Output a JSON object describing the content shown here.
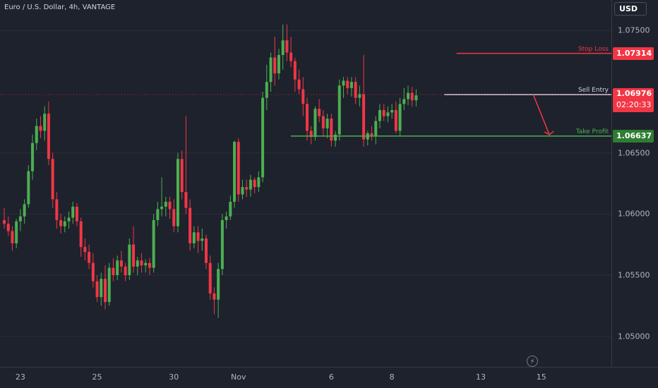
{
  "header": {
    "symbol_title": "Euro / U.S. Dollar, 4h, VANTAGE",
    "currency": "USD"
  },
  "levels": {
    "stop_loss": {
      "label": "Stop Loss",
      "price_text": "1.07314",
      "value": 1.07314,
      "color": "#f23645"
    },
    "sell_entry": {
      "label": "Sell Entry",
      "price_text": "1.06976",
      "value": 1.06976,
      "countdown": "02:20:33",
      "color": "#f23645"
    },
    "take_profit": {
      "label": "Take Profit",
      "price_text": "1.06637",
      "value": 1.06637,
      "color": "#2e7d32"
    }
  },
  "colors": {
    "up": "#4caf50",
    "down": "#f23645",
    "background": "#1e222d",
    "grid": "#2a2e39"
  },
  "chart_data": {
    "type": "candlestick",
    "title": "Euro / U.S. Dollar, 4h, VANTAGE",
    "ylim": [
      1.0475,
      1.0775
    ],
    "y_ticks": [
      "1.05000",
      "1.05500",
      "1.06000",
      "1.06500",
      "1.07500"
    ],
    "y_tick_values": [
      1.05,
      1.055,
      1.06,
      1.065,
      1.075
    ],
    "x_ticks": [
      {
        "label": "23",
        "index": 4
      },
      {
        "label": "25",
        "index": 23
      },
      {
        "label": "30",
        "index": 42
      },
      {
        "label": "Nov",
        "index": 58
      },
      {
        "label": "6",
        "index": 81
      },
      {
        "label": "8",
        "index": 96
      },
      {
        "label": "13",
        "index": 118
      },
      {
        "label": "15",
        "index": 133
      }
    ],
    "candles": [
      [
        1.0595,
        1.0605,
        1.0588,
        1.0592
      ],
      [
        1.0592,
        1.0598,
        1.0582,
        1.0586
      ],
      [
        1.0586,
        1.059,
        1.057,
        1.0576
      ],
      [
        1.0576,
        1.0596,
        1.0572,
        1.0594
      ],
      [
        1.0594,
        1.0604,
        1.0586,
        1.0598
      ],
      [
        1.0598,
        1.0612,
        1.0592,
        1.0608
      ],
      [
        1.0608,
        1.064,
        1.0605,
        1.0635
      ],
      [
        1.0635,
        1.0665,
        1.0628,
        1.0658
      ],
      [
        1.0658,
        1.0678,
        1.0652,
        1.0672
      ],
      [
        1.0672,
        1.068,
        1.0662,
        1.0668
      ],
      [
        1.0668,
        1.0688,
        1.066,
        1.0682
      ],
      [
        1.0682,
        1.0692,
        1.064,
        1.0645
      ],
      [
        1.0645,
        1.065,
        1.0605,
        1.0612
      ],
      [
        1.0612,
        1.0618,
        1.0588,
        1.0595
      ],
      [
        1.0595,
        1.06,
        1.0584,
        1.059
      ],
      [
        1.059,
        1.0598,
        1.0585,
        1.0594
      ],
      [
        1.0594,
        1.0602,
        1.0588,
        1.0597
      ],
      [
        1.0597,
        1.061,
        1.0592,
        1.0606
      ],
      [
        1.0606,
        1.0609,
        1.059,
        1.0594
      ],
      [
        1.0594,
        1.0597,
        1.0565,
        1.0573
      ],
      [
        1.0573,
        1.058,
        1.0562,
        1.0569
      ],
      [
        1.0569,
        1.0575,
        1.0555,
        1.056
      ],
      [
        1.056,
        1.0568,
        1.054,
        1.0545
      ],
      [
        1.0545,
        1.055,
        1.0528,
        1.0532
      ],
      [
        1.0532,
        1.0552,
        1.0525,
        1.0547
      ],
      [
        1.0547,
        1.0558,
        1.0522,
        1.0528
      ],
      [
        1.0528,
        1.056,
        1.0525,
        1.0556
      ],
      [
        1.0556,
        1.0564,
        1.0545,
        1.055
      ],
      [
        1.055,
        1.0566,
        1.0546,
        1.0562
      ],
      [
        1.0562,
        1.057,
        1.0552,
        1.0557
      ],
      [
        1.0557,
        1.056,
        1.0545,
        1.055
      ],
      [
        1.055,
        1.058,
        1.0546,
        1.0575
      ],
      [
        1.0575,
        1.059,
        1.0552,
        1.0557
      ],
      [
        1.0557,
        1.0565,
        1.055,
        1.0562
      ],
      [
        1.0562,
        1.0568,
        1.0552,
        1.0558
      ],
      [
        1.0558,
        1.0563,
        1.0552,
        1.056
      ],
      [
        1.056,
        1.0564,
        1.055,
        1.0556
      ],
      [
        1.0556,
        1.06,
        1.0552,
        1.0595
      ],
      [
        1.0595,
        1.061,
        1.059,
        1.0604
      ],
      [
        1.0604,
        1.063,
        1.0598,
        1.0606
      ],
      [
        1.0606,
        1.0614,
        1.0598,
        1.061
      ],
      [
        1.061,
        1.0614,
        1.0596,
        1.0604
      ],
      [
        1.0604,
        1.0612,
        1.0585,
        1.059
      ],
      [
        1.059,
        1.065,
        1.0585,
        1.0645
      ],
      [
        1.0645,
        1.0652,
        1.0612,
        1.0618
      ],
      [
        1.0618,
        1.068,
        1.06,
        1.0605
      ],
      [
        1.0605,
        1.0612,
        1.057,
        1.0576
      ],
      [
        1.0576,
        1.059,
        1.0572,
        1.0585
      ],
      [
        1.0585,
        1.059,
        1.0568,
        1.0578
      ],
      [
        1.0578,
        1.0588,
        1.057,
        1.058
      ],
      [
        1.058,
        1.0583,
        1.0555,
        1.056
      ],
      [
        1.056,
        1.0566,
        1.053,
        1.0535
      ],
      [
        1.0535,
        1.054,
        1.0518,
        1.053
      ],
      [
        1.053,
        1.056,
        1.0515,
        1.0555
      ],
      [
        1.0555,
        1.06,
        1.055,
        1.0595
      ],
      [
        1.0595,
        1.0602,
        1.0588,
        1.0598
      ],
      [
        1.0598,
        1.0615,
        1.0595,
        1.061
      ],
      [
        1.061,
        1.066,
        1.0605,
        1.0659
      ],
      [
        1.0659,
        1.0662,
        1.061,
        1.0616
      ],
      [
        1.0616,
        1.0628,
        1.0612,
        1.0622
      ],
      [
        1.0622,
        1.0628,
        1.0614,
        1.062
      ],
      [
        1.062,
        1.0632,
        1.0614,
        1.0628
      ],
      [
        1.0628,
        1.063,
        1.0617,
        1.0622
      ],
      [
        1.0622,
        1.0635,
        1.0618,
        1.063
      ],
      [
        1.063,
        1.07,
        1.0626,
        1.0695
      ],
      [
        1.0695,
        1.0722,
        1.0685,
        1.0708
      ],
      [
        1.0708,
        1.0732,
        1.07,
        1.0728
      ],
      [
        1.0728,
        1.0745,
        1.0705,
        1.0715
      ],
      [
        1.0715,
        1.0735,
        1.071,
        1.073
      ],
      [
        1.073,
        1.0755,
        1.0718,
        1.0742
      ],
      [
        1.0742,
        1.0755,
        1.0725,
        1.0732
      ],
      [
        1.0732,
        1.0745,
        1.072,
        1.0725
      ],
      [
        1.0725,
        1.0728,
        1.07,
        1.071
      ],
      [
        1.071,
        1.0718,
        1.0698,
        1.0702
      ],
      [
        1.0702,
        1.0712,
        1.068,
        1.069
      ],
      [
        1.069,
        1.0695,
        1.066,
        1.0668
      ],
      [
        1.0668,
        1.0672,
        1.0657,
        1.0663
      ],
      [
        1.0663,
        1.0688,
        1.066,
        1.0686
      ],
      [
        1.0686,
        1.0694,
        1.0675,
        1.068
      ],
      [
        1.068,
        1.0685,
        1.0664,
        1.067
      ],
      [
        1.067,
        1.0682,
        1.0662,
        1.0678
      ],
      [
        1.0678,
        1.0682,
        1.0655,
        1.066
      ],
      [
        1.066,
        1.0668,
        1.0655,
        1.0665
      ],
      [
        1.0665,
        1.071,
        1.066,
        1.0705
      ],
      [
        1.0705,
        1.0712,
        1.0695,
        1.0709
      ],
      [
        1.0709,
        1.0712,
        1.0698,
        1.0703
      ],
      [
        1.0703,
        1.0712,
        1.0696,
        1.0708
      ],
      [
        1.0708,
        1.0712,
        1.069,
        1.0695
      ],
      [
        1.0695,
        1.0705,
        1.0688,
        1.0698
      ],
      [
        1.0698,
        1.073,
        1.0655,
        1.0661
      ],
      [
        1.0661,
        1.0668,
        1.0656,
        1.0666
      ],
      [
        1.0666,
        1.0672,
        1.066,
        1.0664
      ],
      [
        1.0664,
        1.068,
        1.0657,
        1.0676
      ],
      [
        1.0676,
        1.069,
        1.067,
        1.0685
      ],
      [
        1.0685,
        1.069,
        1.0676,
        1.068
      ],
      [
        1.068,
        1.0688,
        1.0675,
        1.0683
      ],
      [
        1.0683,
        1.069,
        1.0678,
        1.0685
      ],
      [
        1.0685,
        1.0692,
        1.0666,
        1.0668
      ],
      [
        1.0668,
        1.0695,
        1.0664,
        1.069
      ],
      [
        1.069,
        1.0703,
        1.0685,
        1.0694
      ],
      [
        1.0694,
        1.0705,
        1.0689,
        1.0699
      ],
      [
        1.0699,
        1.0704,
        1.0688,
        1.0693
      ],
      [
        1.0693,
        1.0702,
        1.0688,
        1.0697
      ]
    ]
  }
}
